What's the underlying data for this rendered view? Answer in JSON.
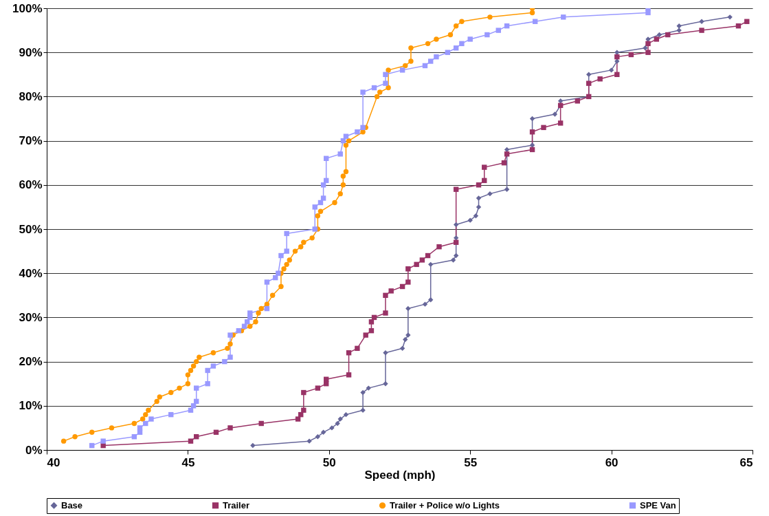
{
  "chart_data": {
    "type": "line",
    "xlabel": "Speed (mph)",
    "xlim": [
      40,
      65
    ],
    "xticks": [
      40,
      45,
      50,
      55,
      60,
      65
    ],
    "ylim": [
      0,
      100
    ],
    "yticks": [
      {
        "value": 0,
        "label": "0%"
      },
      {
        "value": 10,
        "label": "10%"
      },
      {
        "value": 20,
        "label": "20%"
      },
      {
        "value": 30,
        "label": "30%"
      },
      {
        "value": 40,
        "label": "40%"
      },
      {
        "value": 50,
        "label": "50%"
      },
      {
        "value": 60,
        "label": "60%"
      },
      {
        "value": 70,
        "label": "70%"
      },
      {
        "value": 80,
        "label": "80%"
      },
      {
        "value": 90,
        "label": "90%"
      },
      {
        "value": 100,
        "label": "100%"
      }
    ],
    "grid": "y",
    "legend": "bottom",
    "line_style": "solid",
    "series": [
      {
        "name": "Base",
        "color": "#666699",
        "marker": "diamond",
        "x": [
          47.3,
          49.3,
          49.6,
          49.8,
          50.1,
          50.3,
          50.4,
          50.6,
          51.2,
          51.2,
          51.4,
          52.0,
          52.0,
          52.6,
          52.7,
          52.8,
          52.8,
          53.4,
          53.6,
          53.6,
          54.4,
          54.5,
          54.5,
          54.5,
          55.0,
          55.2,
          55.3,
          55.3,
          55.7,
          56.3,
          56.3,
          57.2,
          57.2,
          58.0,
          58.2,
          58.2,
          59.2,
          59.2,
          60.0,
          60.2,
          60.2,
          61.2,
          61.3,
          61.7,
          62.4,
          62.4,
          63.2,
          64.2
        ],
        "values": [
          1,
          2,
          3,
          4,
          5,
          6,
          7,
          8,
          9,
          13,
          14,
          15,
          22,
          23,
          25,
          26,
          32,
          33,
          34,
          42,
          43,
          44,
          48,
          51,
          52,
          53,
          55,
          57,
          58,
          59,
          68,
          69,
          75,
          76,
          78,
          79,
          80,
          85,
          86,
          88,
          90,
          91,
          93,
          94,
          95,
          96,
          97,
          98
        ]
      },
      {
        "name": "Trailer",
        "color": "#993366",
        "marker": "square",
        "x": [
          42.0,
          45.1,
          45.3,
          46.0,
          46.5,
          47.6,
          48.9,
          49.0,
          49.1,
          49.1,
          49.6,
          49.9,
          49.9,
          50.7,
          50.7,
          51.0,
          51.3,
          51.5,
          51.5,
          51.6,
          52.0,
          52.0,
          52.2,
          52.6,
          52.8,
          52.8,
          53.1,
          53.3,
          53.5,
          53.9,
          54.5,
          54.5,
          55.3,
          55.5,
          55.5,
          56.2,
          56.3,
          57.2,
          57.2,
          57.6,
          58.2,
          58.2,
          58.8,
          59.2,
          59.2,
          59.6,
          60.2,
          60.2,
          60.7,
          61.3,
          61.3,
          61.6,
          62.0,
          63.2,
          64.5,
          64.8
        ],
        "values": [
          1,
          2,
          3,
          4,
          5,
          6,
          7,
          8,
          9,
          13,
          14,
          15,
          16,
          17,
          22,
          23,
          26,
          27,
          29,
          30,
          31,
          35,
          36,
          37,
          38,
          41,
          42,
          43,
          44,
          46,
          47,
          59,
          60,
          61,
          64,
          65,
          67,
          68,
          72,
          73,
          74,
          78,
          79,
          80,
          83,
          84,
          85,
          89,
          89.5,
          90,
          92,
          93,
          94,
          95,
          96,
          97
        ]
      },
      {
        "name": "Trailer + Police w/o Lights",
        "color": "#ff9900",
        "marker": "circle",
        "x": [
          40.6,
          41.0,
          41.6,
          42.3,
          43.1,
          43.4,
          43.5,
          43.6,
          43.9,
          44.0,
          44.4,
          44.7,
          45.0,
          45.0,
          45.1,
          45.2,
          45.3,
          45.4,
          45.9,
          46.4,
          46.5,
          46.6,
          46.9,
          47.2,
          47.4,
          47.5,
          47.6,
          47.8,
          48.0,
          48.3,
          48.3,
          48.4,
          48.5,
          48.6,
          48.8,
          49.0,
          49.1,
          49.4,
          49.6,
          49.6,
          49.7,
          50.2,
          50.4,
          50.5,
          50.5,
          50.6,
          50.6,
          50.7,
          51.2,
          51.3,
          51.7,
          51.8,
          52.1,
          52.1,
          52.7,
          52.9,
          52.9,
          53.5,
          53.8,
          54.3,
          54.5,
          54.7,
          55.7,
          57.2,
          57.2
        ],
        "values": [
          2,
          3,
          4,
          5,
          6,
          7,
          8,
          9,
          11,
          12,
          13,
          14,
          15,
          17,
          18,
          19,
          20,
          21,
          22,
          23,
          24,
          26,
          27,
          28,
          29,
          31,
          32,
          33,
          35,
          37,
          40,
          41,
          42,
          43,
          45,
          46,
          47,
          48,
          50,
          53,
          54,
          56,
          58,
          60,
          62,
          63,
          69,
          70,
          72,
          73,
          80,
          81,
          82,
          86,
          87,
          88,
          91,
          92,
          93,
          94,
          96,
          97,
          98,
          99,
          100
        ]
      },
      {
        "name": "SPE Van",
        "color": "#9999ff",
        "marker": "square",
        "x": [
          41.6,
          42.0,
          43.1,
          43.3,
          43.3,
          43.5,
          43.7,
          44.4,
          45.1,
          45.2,
          45.3,
          45.3,
          45.7,
          45.7,
          45.9,
          46.3,
          46.5,
          46.5,
          46.8,
          47.0,
          47.1,
          47.2,
          47.2,
          47.8,
          47.8,
          48.1,
          48.2,
          48.3,
          48.5,
          48.5,
          49.5,
          49.5,
          49.7,
          49.8,
          49.8,
          49.9,
          49.9,
          50.4,
          50.5,
          50.6,
          51.0,
          51.2,
          51.2,
          51.6,
          52.0,
          52.0,
          52.6,
          53.4,
          53.6,
          53.8,
          54.2,
          54.5,
          54.7,
          55.0,
          55.6,
          56.0,
          56.3,
          57.3,
          58.3,
          61.3,
          61.3
        ],
        "values": [
          1,
          2,
          3,
          4,
          5,
          6,
          7,
          8,
          9,
          10,
          11,
          14,
          15,
          18,
          19,
          20,
          21,
          26,
          27,
          28,
          29,
          30,
          31,
          32,
          38,
          39,
          40,
          44,
          45,
          49,
          50,
          55,
          56,
          57,
          60,
          61,
          66,
          67,
          70,
          71,
          72,
          73,
          81,
          82,
          83,
          85,
          86,
          87,
          88,
          89,
          90,
          91,
          92,
          93,
          94,
          95,
          96,
          97,
          98,
          99,
          100
        ]
      }
    ]
  }
}
